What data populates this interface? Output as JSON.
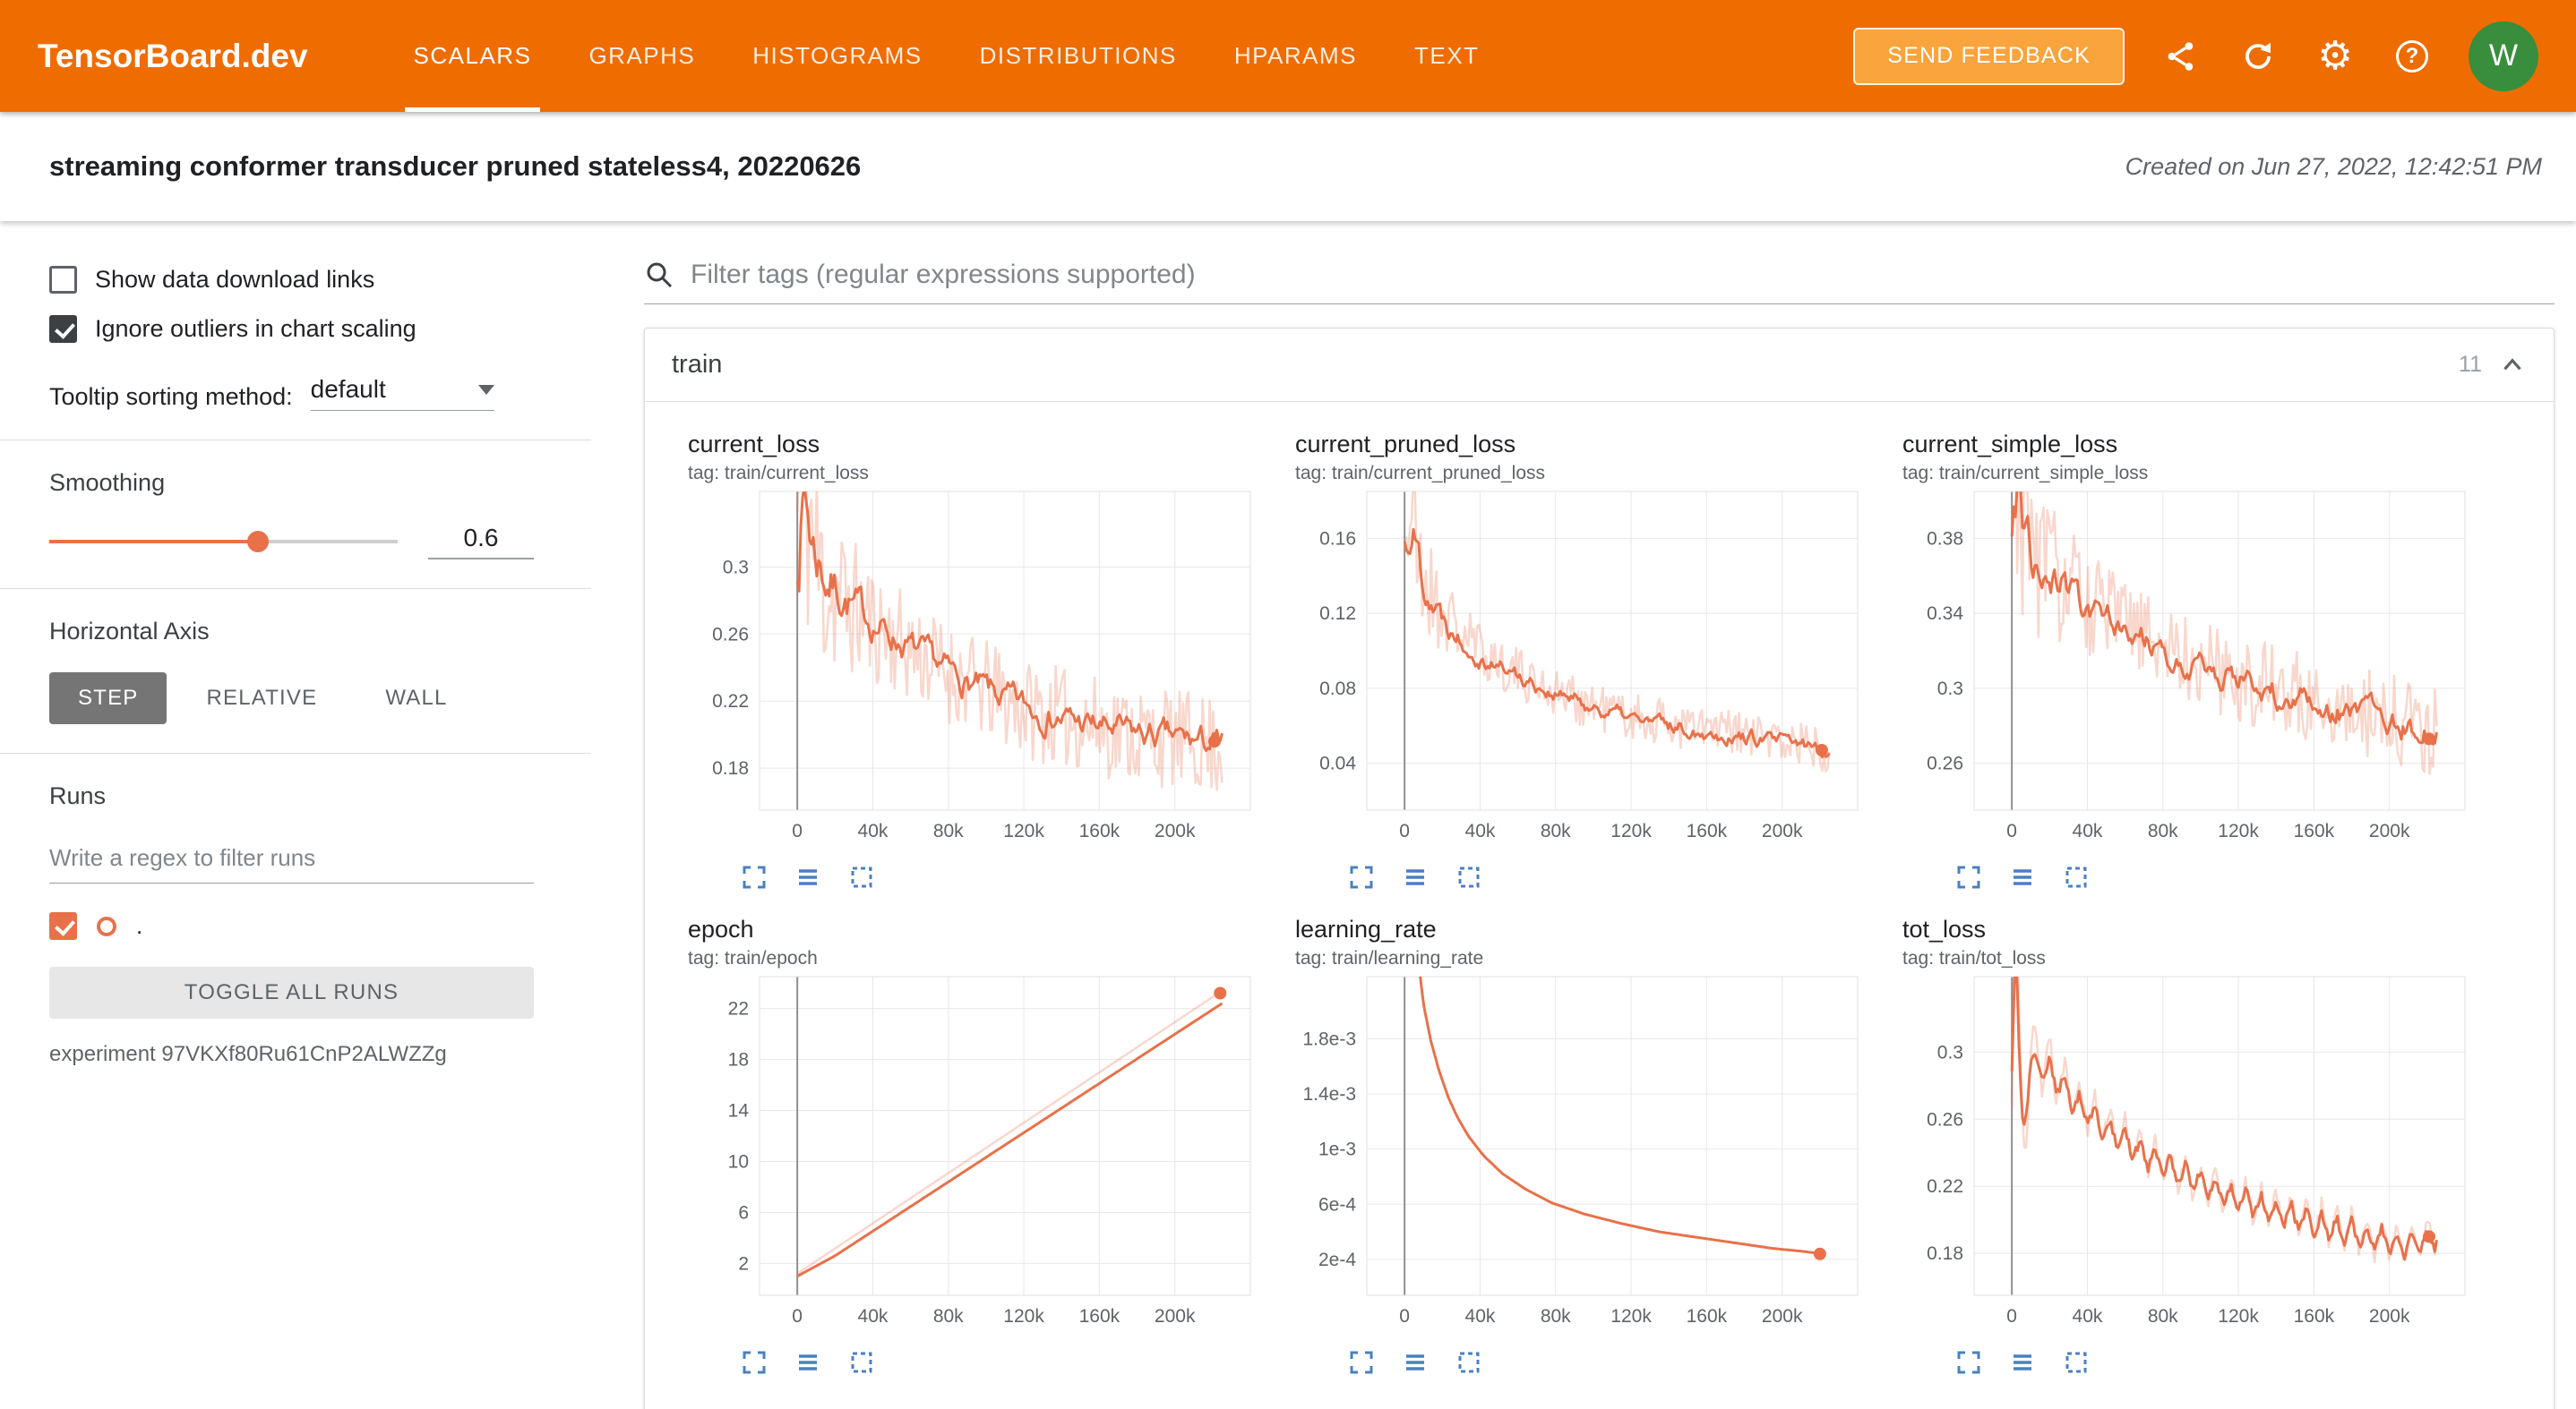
{
  "colors": {
    "header_orange": "#ef6c00",
    "feedback_orange": "#f9a43c",
    "run_line": "#e8714a",
    "tool_blue": "#4a80c2",
    "avatar_green": "#388e3c",
    "checkbox_dark": "#3c4043"
  },
  "header": {
    "app_title": "TensorBoard.dev",
    "nav": [
      {
        "label": "SCALARS",
        "active": true
      },
      {
        "label": "GRAPHS"
      },
      {
        "label": "HISTOGRAMS"
      },
      {
        "label": "DISTRIBUTIONS"
      },
      {
        "label": "HPARAMS"
      },
      {
        "label": "TEXT"
      }
    ],
    "feedback_label": "SEND FEEDBACK",
    "help_glyph": "?",
    "gear_glyph": "⚙",
    "avatar_letter": "W"
  },
  "experiment": {
    "title": "streaming conformer transducer pruned stateless4, 20220626",
    "created": "Created on Jun 27, 2022, 12:42:51 PM"
  },
  "sidebar": {
    "checkboxes": [
      {
        "label": "Show data download links",
        "checked": false
      },
      {
        "label": "Ignore outliers in chart scaling",
        "checked": true
      }
    ],
    "tooltip_label": "Tooltip sorting method:",
    "tooltip_value": "default",
    "smoothing_label": "Smoothing",
    "smoothing_value": "0.6",
    "axis_label": "Horizontal Axis",
    "axis_options": [
      "STEP",
      "RELATIVE",
      "WALL"
    ],
    "axis_active": "STEP",
    "runs_label": "Runs",
    "runs_placeholder": "Write a regex to filter runs",
    "run_name": ".",
    "toggle_all": "TOGGLE ALL RUNS",
    "experiment_id": "experiment 97VKXf80Ru61CnP2ALWZZg"
  },
  "main": {
    "filter_placeholder": "Filter tags (regular expressions supported)",
    "group_title": "train",
    "group_count": "11"
  },
  "chart_data": [
    {
      "id": "current_loss",
      "type": "line",
      "title": "current_loss",
      "tag": "tag: train/current_loss",
      "x_domain": [
        -20,
        240
      ],
      "x_ticks": {
        "values": [
          0,
          40,
          80,
          120,
          160,
          200
        ],
        "labels": [
          "0",
          "40k",
          "80k",
          "120k",
          "160k",
          "200k"
        ]
      },
      "y_domain": [
        0.155,
        0.345
      ],
      "y_ticks": {
        "values": [
          0.18,
          0.22,
          0.26,
          0.3
        ],
        "labels": [
          "0.18",
          "0.22",
          "0.26",
          "0.3"
        ]
      },
      "series": [
        {
          "role": "raw",
          "noise": 0.03,
          "boost": 3,
          "seed": 11,
          "points": [
            [
              0,
              0.33
            ],
            [
              3,
              0.4
            ],
            [
              6,
              0.335
            ],
            [
              10,
              0.3
            ],
            [
              20,
              0.284
            ],
            [
              40,
              0.266
            ],
            [
              60,
              0.251
            ],
            [
              80,
              0.237
            ],
            [
              100,
              0.226
            ],
            [
              120,
              0.216
            ],
            [
              140,
              0.21
            ],
            [
              160,
              0.205
            ],
            [
              180,
              0.2
            ],
            [
              200,
              0.197
            ],
            [
              225,
              0.193
            ]
          ]
        },
        {
          "role": "smooth",
          "noise": 0.012,
          "boost": 3,
          "seed": 7,
          "points": [
            [
              0,
              0.315
            ],
            [
              4,
              0.345
            ],
            [
              8,
              0.315
            ],
            [
              15,
              0.295
            ],
            [
              30,
              0.276
            ],
            [
              50,
              0.259
            ],
            [
              70,
              0.244
            ],
            [
              90,
              0.231
            ],
            [
              110,
              0.221
            ],
            [
              130,
              0.213
            ],
            [
              150,
              0.207
            ],
            [
              170,
              0.202
            ],
            [
              190,
              0.199
            ],
            [
              210,
              0.196
            ],
            [
              225,
              0.194
            ]
          ]
        }
      ],
      "end_dot": [
        221,
        0.196
      ]
    },
    {
      "id": "current_pruned_loss",
      "type": "line",
      "title": "current_pruned_loss",
      "tag": "tag: train/current_pruned_loss",
      "x_domain": [
        -20,
        240
      ],
      "x_ticks": {
        "values": [
          0,
          40,
          80,
          120,
          160,
          200
        ],
        "labels": [
          "0",
          "40k",
          "80k",
          "120k",
          "160k",
          "200k"
        ]
      },
      "y_domain": [
        0.015,
        0.185
      ],
      "y_ticks": {
        "values": [
          0.04,
          0.08,
          0.12,
          0.16
        ],
        "labels": [
          "0.04",
          "0.08",
          "0.12",
          "0.16"
        ]
      },
      "series": [
        {
          "role": "raw",
          "noise": 0.013,
          "boost": 3,
          "seed": 21,
          "points": [
            [
              0,
              0.16
            ],
            [
              3,
              0.178
            ],
            [
              6,
              0.15
            ],
            [
              10,
              0.138
            ],
            [
              20,
              0.12
            ],
            [
              40,
              0.1
            ],
            [
              60,
              0.088
            ],
            [
              80,
              0.078
            ],
            [
              100,
              0.071
            ],
            [
              120,
              0.065
            ],
            [
              140,
              0.061
            ],
            [
              160,
              0.058
            ],
            [
              180,
              0.055
            ],
            [
              200,
              0.052
            ],
            [
              225,
              0.048
            ]
          ]
        },
        {
          "role": "smooth",
          "noise": 0.006,
          "boost": 3,
          "seed": 22,
          "points": [
            [
              0,
              0.155
            ],
            [
              4,
              0.168
            ],
            [
              10,
              0.14
            ],
            [
              20,
              0.118
            ],
            [
              40,
              0.098
            ],
            [
              60,
              0.087
            ],
            [
              80,
              0.077
            ],
            [
              100,
              0.07
            ],
            [
              120,
              0.064
            ],
            [
              140,
              0.06
            ],
            [
              160,
              0.057
            ],
            [
              180,
              0.054
            ],
            [
              200,
              0.051
            ],
            [
              225,
              0.047
            ]
          ]
        }
      ],
      "end_dot": [
        221,
        0.047
      ]
    },
    {
      "id": "current_simple_loss",
      "type": "line",
      "title": "current_simple_loss",
      "tag": "tag: train/current_simple_loss",
      "x_domain": [
        -20,
        240
      ],
      "x_ticks": {
        "values": [
          0,
          40,
          80,
          120,
          160,
          200
        ],
        "labels": [
          "0",
          "40k",
          "80k",
          "120k",
          "160k",
          "200k"
        ]
      },
      "y_domain": [
        0.235,
        0.405
      ],
      "y_ticks": {
        "values": [
          0.26,
          0.3,
          0.34,
          0.38
        ],
        "labels": [
          "0.26",
          "0.3",
          "0.34",
          "0.38"
        ]
      },
      "series": [
        {
          "role": "raw",
          "noise": 0.024,
          "boost": 2.5,
          "seed": 31,
          "points": [
            [
              0,
              0.395
            ],
            [
              3,
              0.43
            ],
            [
              6,
              0.39
            ],
            [
              10,
              0.376
            ],
            [
              20,
              0.362
            ],
            [
              40,
              0.346
            ],
            [
              60,
              0.334
            ],
            [
              80,
              0.323
            ],
            [
              100,
              0.314
            ],
            [
              120,
              0.306
            ],
            [
              140,
              0.299
            ],
            [
              160,
              0.294
            ],
            [
              180,
              0.289
            ],
            [
              200,
              0.284
            ],
            [
              225,
              0.277
            ]
          ]
        },
        {
          "role": "smooth",
          "noise": 0.01,
          "boost": 2.5,
          "seed": 32,
          "points": [
            [
              0,
              0.385
            ],
            [
              4,
              0.405
            ],
            [
              10,
              0.372
            ],
            [
              20,
              0.358
            ],
            [
              40,
              0.343
            ],
            [
              60,
              0.331
            ],
            [
              80,
              0.32
            ],
            [
              100,
              0.312
            ],
            [
              120,
              0.304
            ],
            [
              140,
              0.297
            ],
            [
              160,
              0.292
            ],
            [
              180,
              0.287
            ],
            [
              200,
              0.282
            ],
            [
              225,
              0.275
            ]
          ]
        }
      ],
      "end_dot": [
        221,
        0.273
      ]
    },
    {
      "id": "epoch",
      "type": "line",
      "title": "epoch",
      "tag": "tag: train/epoch",
      "x_domain": [
        -20,
        240
      ],
      "x_ticks": {
        "values": [
          0,
          40,
          80,
          120,
          160,
          200
        ],
        "labels": [
          "0",
          "40k",
          "80k",
          "120k",
          "160k",
          "200k"
        ]
      },
      "y_domain": [
        -0.5,
        24.5
      ],
      "y_ticks": {
        "values": [
          2,
          6,
          10,
          14,
          18,
          22
        ],
        "labels": [
          "2",
          "6",
          "10",
          "14",
          "18",
          "22"
        ]
      },
      "series": [
        {
          "role": "raw",
          "noise": 0,
          "seed": 41,
          "points": [
            [
              0,
              1.2
            ],
            [
              225,
              23.4
            ]
          ]
        },
        {
          "role": "smooth",
          "noise": 0,
          "seed": 42,
          "points": [
            [
              0,
              1.0
            ],
            [
              20,
              2.6
            ],
            [
              225,
              22.4
            ]
          ]
        }
      ],
      "end_dot": [
        224,
        23.2
      ]
    },
    {
      "id": "learning_rate",
      "type": "line",
      "title": "learning_rate",
      "tag": "tag: train/learning_rate",
      "x_domain": [
        -20,
        240
      ],
      "x_ticks": {
        "values": [
          0,
          40,
          80,
          120,
          160,
          200
        ],
        "labels": [
          "0",
          "40k",
          "80k",
          "120k",
          "160k",
          "200k"
        ]
      },
      "y_domain": [
        -6e-05,
        0.00225
      ],
      "y_ticks": {
        "values": [
          0.0002,
          0.0006,
          0.001,
          0.0014,
          0.0018
        ],
        "labels": [
          "2e-4",
          "6e-4",
          "1e-3",
          "1.4e-3",
          "1.8e-3"
        ]
      },
      "series": [
        {
          "role": "smooth",
          "noise": 0,
          "seed": 51,
          "points": [
            [
              4,
              0.0028
            ],
            [
              7,
              0.0024
            ],
            [
              10,
              0.00205
            ],
            [
              14,
              0.00178
            ],
            [
              18,
              0.00158
            ],
            [
              23,
              0.00138
            ],
            [
              28,
              0.00123
            ],
            [
              34,
              0.00109
            ],
            [
              42,
              0.00095
            ],
            [
              52,
              0.00082
            ],
            [
              64,
              0.00071
            ],
            [
              78,
              0.00061
            ],
            [
              95,
              0.00053
            ],
            [
              115,
              0.00046
            ],
            [
              135,
              0.0004
            ],
            [
              155,
              0.00036
            ],
            [
              175,
              0.00032
            ],
            [
              195,
              0.00028
            ],
            [
              210,
              0.00026
            ],
            [
              222,
              0.00024
            ]
          ]
        }
      ],
      "end_dot": [
        220,
        0.00024
      ]
    },
    {
      "id": "tot_loss",
      "type": "line",
      "title": "tot_loss",
      "tag": "tag: train/tot_loss",
      "x_domain": [
        -20,
        240
      ],
      "x_ticks": {
        "values": [
          0,
          40,
          80,
          120,
          160,
          200
        ],
        "labels": [
          "0",
          "40k",
          "80k",
          "120k",
          "160k",
          "200k"
        ]
      },
      "y_domain": [
        0.155,
        0.345
      ],
      "y_ticks": {
        "values": [
          0.18,
          0.22,
          0.26,
          0.3
        ],
        "labels": [
          "0.18",
          "0.22",
          "0.26",
          "0.3"
        ]
      },
      "series": [
        {
          "role": "raw",
          "ntype": "saw",
          "period": 8,
          "noise": 0.014,
          "boost": 2,
          "seed": 61,
          "points": [
            [
              0,
              0.3
            ],
            [
              2,
              0.4
            ],
            [
              4,
              0.3
            ],
            [
              6,
              0.245
            ],
            [
              10,
              0.298
            ],
            [
              20,
              0.29
            ],
            [
              35,
              0.271
            ],
            [
              50,
              0.256
            ],
            [
              70,
              0.24
            ],
            [
              90,
              0.228
            ],
            [
              110,
              0.218
            ],
            [
              130,
              0.209
            ],
            [
              150,
              0.202
            ],
            [
              170,
              0.196
            ],
            [
              190,
              0.19
            ],
            [
              210,
              0.186
            ],
            [
              225,
              0.191
            ]
          ]
        },
        {
          "role": "smooth",
          "ntype": "saw",
          "period": 8,
          "noise": 0.009,
          "seed": 62,
          "points": [
            [
              0,
              0.295
            ],
            [
              2,
              0.37
            ],
            [
              4,
              0.29
            ],
            [
              6,
              0.25
            ],
            [
              10,
              0.295
            ],
            [
              20,
              0.288
            ],
            [
              35,
              0.269
            ],
            [
              50,
              0.254
            ],
            [
              70,
              0.239
            ],
            [
              90,
              0.227
            ],
            [
              110,
              0.217
            ],
            [
              130,
              0.208
            ],
            [
              150,
              0.201
            ],
            [
              170,
              0.195
            ],
            [
              190,
              0.189
            ],
            [
              210,
              0.185
            ],
            [
              225,
              0.19
            ]
          ]
        }
      ],
      "end_dot": [
        221,
        0.19
      ]
    }
  ]
}
